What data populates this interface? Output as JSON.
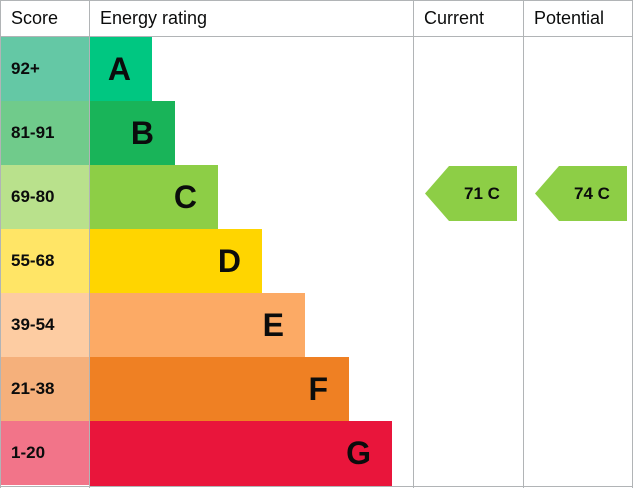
{
  "chart_data": {
    "type": "bar",
    "headers": {
      "score": "Score",
      "rating": "Energy rating",
      "current": "Current",
      "potential": "Potential"
    },
    "bands": [
      {
        "letter": "A",
        "range": "92+",
        "color": "#00c781",
        "light": "#64c8a5"
      },
      {
        "letter": "B",
        "range": "81-91",
        "color": "#19b459",
        "light": "#70cb8b"
      },
      {
        "letter": "C",
        "range": "69-80",
        "color": "#8dce46",
        "light": "#b9e18c"
      },
      {
        "letter": "D",
        "range": "55-68",
        "color": "#ffd500",
        "light": "#ffe566"
      },
      {
        "letter": "E",
        "range": "39-54",
        "color": "#fcaa65",
        "light": "#fdcca2"
      },
      {
        "letter": "F",
        "range": "21-38",
        "color": "#ef8023",
        "light": "#f5b07b"
      },
      {
        "letter": "G",
        "range": "1-20",
        "color": "#e9153b",
        "light": "#f27489"
      }
    ],
    "current": {
      "score": 71,
      "band": "C",
      "label": "71 C"
    },
    "potential": {
      "score": 74,
      "band": "C",
      "label": "74 C"
    }
  }
}
